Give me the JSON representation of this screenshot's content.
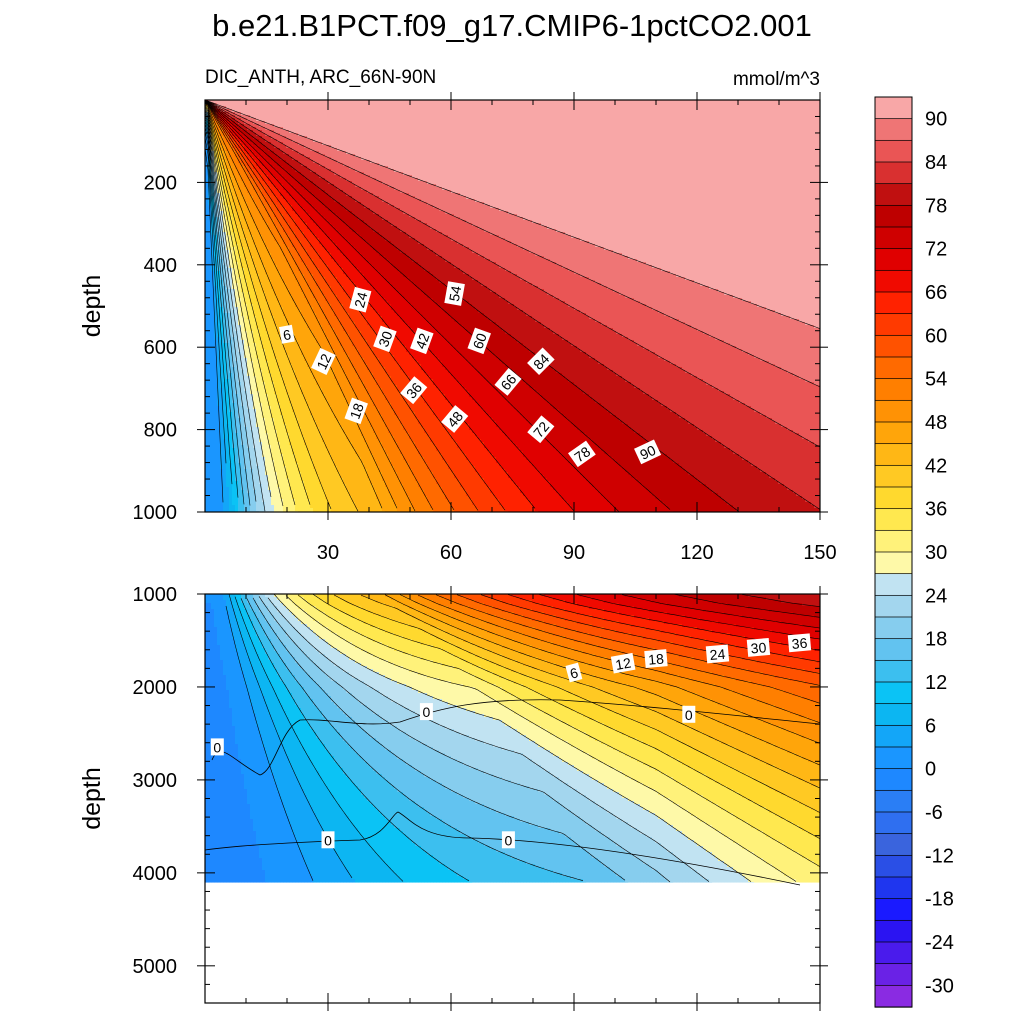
{
  "figure": {
    "title": "b.e21.B1PCT.f09_g17.CMIP6-1pctCO2.001",
    "left_subtitle": "DIC_ANTH, ARC_66N-90N",
    "right_subtitle": "mmol/m^3"
  },
  "chart_data": {
    "type": "heatmap",
    "description_x": "time (years)",
    "xlim": [
      0,
      150
    ],
    "x_ticks": [
      30,
      60,
      90,
      120,
      150
    ],
    "upper_panel": {
      "ylabel": "depth",
      "ylim": [
        0,
        1000
      ],
      "y_ticks": [
        200,
        400,
        600,
        800,
        1000
      ]
    },
    "lower_panel": {
      "ylabel": "depth",
      "ylim": [
        1000,
        5400
      ],
      "y_ticks": [
        1000,
        2000,
        3000,
        4000,
        5000
      ],
      "ocean_floor_depth": 4100
    },
    "colorbar": {
      "levels": [
        -33,
        -30,
        -27,
        -24,
        -21,
        -18,
        -15,
        -12,
        -9,
        -6,
        -3,
        0,
        3,
        6,
        9,
        12,
        15,
        18,
        21,
        24,
        27,
        30,
        33,
        36,
        39,
        42,
        45,
        48,
        51,
        54,
        57,
        60,
        63,
        66,
        69,
        72,
        75,
        78,
        81,
        84,
        87,
        90,
        93
      ],
      "colors": [
        "#8a2be2",
        "#6a22e6",
        "#4a1bec",
        "#2b14f2",
        "#1a1aff",
        "#1f36ef",
        "#2a4fe6",
        "#3a64dd",
        "#2f6ff0",
        "#2a7ef5",
        "#1e88ff",
        "#1a96ff",
        "#13a6f8",
        "#0cb6f2",
        "#0bc3f5",
        "#3cbfef",
        "#62c3f0",
        "#86cdee",
        "#a3d6ee",
        "#c1e3f2",
        "#fef9a8",
        "#fff27a",
        "#ffe84f",
        "#ffd92e",
        "#ffc923",
        "#ffb715",
        "#ffa50a",
        "#ff9205",
        "#ff7f00",
        "#ff6a00",
        "#ff5200",
        "#ff3a00",
        "#ff2200",
        "#f00a00",
        "#e00000",
        "#cf0000",
        "#be0000",
        "#c01010",
        "#d93030",
        "#ea5555",
        "#ef7575",
        "#f8a7a7"
      ],
      "tick_labels": [
        "-30",
        "-24",
        "-18",
        "-12",
        "-6",
        "0",
        "6",
        "12",
        "18",
        "24",
        "30",
        "36",
        "42",
        "48",
        "54",
        "60",
        "66",
        "72",
        "78",
        "84",
        "90"
      ]
    },
    "contour_labels_upper": [
      {
        "text": "6",
        "t": 20,
        "d": 570,
        "rot": -10
      },
      {
        "text": "12",
        "t": 29,
        "d": 635,
        "rot": -65
      },
      {
        "text": "18",
        "t": 37,
        "d": 755,
        "rot": -70
      },
      {
        "text": "24",
        "t": 38,
        "d": 485,
        "rot": -75
      },
      {
        "text": "30",
        "t": 44,
        "d": 580,
        "rot": -70
      },
      {
        "text": "36",
        "t": 51,
        "d": 705,
        "rot": -50
      },
      {
        "text": "42",
        "t": 53,
        "d": 585,
        "rot": -70
      },
      {
        "text": "48",
        "t": 61,
        "d": 775,
        "rot": -50
      },
      {
        "text": "54",
        "t": 61,
        "d": 470,
        "rot": -80
      },
      {
        "text": "60",
        "t": 67,
        "d": 585,
        "rot": -70
      },
      {
        "text": "66",
        "t": 74,
        "d": 685,
        "rot": -50
      },
      {
        "text": "72",
        "t": 82,
        "d": 800,
        "rot": -50
      },
      {
        "text": "78",
        "t": 92,
        "d": 860,
        "rot": -35
      },
      {
        "text": "84",
        "t": 82,
        "d": 635,
        "rot": -45
      },
      {
        "text": "90",
        "t": 108,
        "d": 855,
        "rot": -25
      }
    ],
    "contour_labels_lower": [
      {
        "text": "0",
        "t": 3,
        "d": 2650,
        "rot": 0
      },
      {
        "text": "0",
        "t": 54,
        "d": 2270,
        "rot": 0
      },
      {
        "text": "0",
        "t": 118,
        "d": 2300,
        "rot": 0
      },
      {
        "text": "0",
        "t": 30,
        "d": 3650,
        "rot": 0
      },
      {
        "text": "0",
        "t": 74,
        "d": 3650,
        "rot": 0
      },
      {
        "text": "6",
        "t": 90,
        "d": 1850,
        "rot": -15
      },
      {
        "text": "12",
        "t": 102,
        "d": 1750,
        "rot": -10
      },
      {
        "text": "18",
        "t": 110,
        "d": 1700,
        "rot": -5
      },
      {
        "text": "24",
        "t": 125,
        "d": 1650,
        "rot": -5
      },
      {
        "text": "30",
        "t": 135,
        "d": 1580,
        "rot": -5
      },
      {
        "text": "36",
        "t": 145,
        "d": 1530,
        "rot": -5
      }
    ]
  }
}
